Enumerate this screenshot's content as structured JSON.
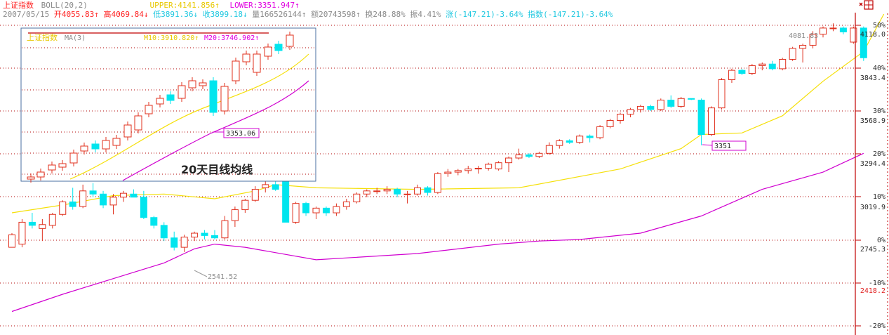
{
  "header": {
    "index_name": "上证指数",
    "indicator": "BOLL(20,2)",
    "upper": "UPPER:4141.856↑",
    "lower": "LOWER:3351.947↑",
    "date": "2007/05/15",
    "open": "开4055.83↑",
    "high": "高4069.84↓",
    "low": "低3891.36↓",
    "close": "收3899.18↓",
    "volume": "量166526144↑",
    "amount": "额20743598↑",
    "turnover": "换248.88%",
    "amplitude": "振4.41%",
    "change": "涨(-147.21)-3.64%",
    "index_change": "指数(-147.21)-3.64%"
  },
  "inset": {
    "title": "上证指数",
    "ma_label": "MA(3)",
    "m10": "M10:3910.820↑",
    "m20": "M20:3746.902↑",
    "low_label": "3353.06",
    "caption": "20天目线均线"
  },
  "annotations": {
    "main_low": "2541.52",
    "main_high": "4081.83",
    "mid_low": "3351"
  },
  "colors": {
    "up": "#e0301e",
    "down": "#00e5ee",
    "upper_band": "#f5e00a",
    "lower_band": "#d000d0",
    "grid": "#b00000",
    "axis": "#c00000",
    "header_red": "#ff2020",
    "header_yellow": "#e8c800",
    "header_cyan": "#20c8e0",
    "header_magenta": "#e000e0",
    "header_gray": "#8a8a8a"
  },
  "chart_data": {
    "type": "candlestick",
    "y_axis": {
      "price_labels": [
        "4118.0",
        "3843.4",
        "3568.9",
        "3294.4",
        "3019.9",
        "2745.3",
        "2418.2"
      ],
      "percent_labels": [
        "50%",
        "40%",
        "30%",
        "20%",
        "10%",
        "0%",
        "-10%",
        "-20%"
      ],
      "range": [
        2200,
        4300
      ]
    },
    "ohlc": [
      [
        2700,
        2790,
        2720,
        2780
      ],
      [
        2720,
        2880,
        2700,
        2860
      ],
      [
        2860,
        2920,
        2820,
        2840
      ],
      [
        2820,
        2880,
        2740,
        2845
      ],
      [
        2840,
        2920,
        2820,
        2910
      ],
      [
        2910,
        3000,
        2900,
        2990
      ],
      [
        2990,
        3080,
        2940,
        2960
      ],
      [
        2960,
        3100,
        2950,
        3060
      ],
      [
        3060,
        3110,
        3020,
        3040
      ],
      [
        3040,
        3060,
        2950,
        2970
      ],
      [
        2970,
        3040,
        2910,
        3020
      ],
      [
        3020,
        3060,
        2990,
        3045
      ],
      [
        3040,
        3070,
        3020,
        3020
      ],
      [
        3020,
        3060,
        2880,
        2890
      ],
      [
        2890,
        2900,
        2820,
        2840
      ],
      [
        2840,
        2860,
        2740,
        2760
      ],
      [
        2760,
        2800,
        2680,
        2700
      ],
      [
        2700,
        2780,
        2670,
        2765
      ],
      [
        2765,
        2800,
        2740,
        2790
      ],
      [
        2790,
        2810,
        2750,
        2775
      ],
      [
        2775,
        2810,
        2750,
        2760
      ],
      [
        2760,
        2900,
        2750,
        2870
      ],
      [
        2870,
        2960,
        2830,
        2940
      ],
      [
        2940,
        3010,
        2920,
        3000
      ],
      [
        3000,
        3090,
        2990,
        3070
      ],
      [
        3080,
        3120,
        3050,
        3100
      ],
      [
        3100,
        3130,
        3060,
        3070
      ],
      [
        3120,
        3130,
        2860,
        2860
      ],
      [
        2860,
        2990,
        2850,
        2980
      ],
      [
        2980,
        2990,
        2900,
        2920
      ],
      [
        2920,
        2960,
        2880,
        2950
      ],
      [
        2950,
        2960,
        2900,
        2920
      ],
      [
        2920,
        2980,
        2900,
        2960
      ],
      [
        2960,
        3010,
        2940,
        2990
      ],
      [
        2990,
        3050,
        2980,
        3040
      ],
      [
        3040,
        3070,
        3020,
        3060
      ],
      [
        3060,
        3080,
        3040,
        3060
      ],
      [
        3060,
        3090,
        3040,
        3070
      ],
      [
        3070,
        3080,
        3020,
        3040
      ],
      [
        3040,
        3060,
        2980,
        3040
      ],
      [
        3040,
        3100,
        3030,
        3080
      ],
      [
        3080,
        3090,
        3030,
        3050
      ],
      [
        3050,
        3180,
        3040,
        3170
      ],
      [
        3170,
        3200,
        3150,
        3180
      ],
      [
        3180,
        3200,
        3160,
        3190
      ],
      [
        3190,
        3220,
        3170,
        3200
      ],
      [
        3200,
        3220,
        3170,
        3205
      ],
      [
        3205,
        3240,
        3190,
        3230
      ],
      [
        3200,
        3250,
        3190,
        3240
      ],
      [
        3240,
        3280,
        3180,
        3270
      ],
      [
        3270,
        3330,
        3260,
        3290
      ],
      [
        3290,
        3300,
        3270,
        3280
      ],
      [
        3280,
        3310,
        3270,
        3300
      ],
      [
        3300,
        3370,
        3290,
        3350
      ],
      [
        3350,
        3390,
        3330,
        3380
      ],
      [
        3380,
        3390,
        3360,
        3370
      ],
      [
        3370,
        3420,
        3360,
        3410
      ],
      [
        3410,
        3420,
        3370,
        3400
      ],
      [
        3400,
        3480,
        3390,
        3470
      ],
      [
        3470,
        3520,
        3460,
        3510
      ],
      [
        3510,
        3560,
        3490,
        3550
      ],
      [
        3550,
        3590,
        3530,
        3580
      ],
      [
        3580,
        3610,
        3560,
        3600
      ],
      [
        3600,
        3610,
        3570,
        3580
      ],
      [
        3580,
        3650,
        3570,
        3640
      ],
      [
        3640,
        3670,
        3590,
        3600
      ],
      [
        3600,
        3660,
        3590,
        3650
      ],
      [
        3650,
        3650,
        3640,
        3645
      ],
      [
        3640,
        3650,
        3351,
        3420
      ],
      [
        3420,
        3600,
        3410,
        3590
      ],
      [
        3590,
        3780,
        3580,
        3770
      ],
      [
        3770,
        3840,
        3750,
        3830
      ],
      [
        3830,
        3840,
        3800,
        3810
      ],
      [
        3810,
        3870,
        3800,
        3860
      ],
      [
        3860,
        3880,
        3830,
        3870
      ],
      [
        3870,
        3890,
        3830,
        3840
      ],
      [
        3840,
        3910,
        3830,
        3900
      ],
      [
        3900,
        3980,
        3890,
        3970
      ],
      [
        3970,
        4000,
        3880,
        3990
      ],
      [
        3990,
        4080,
        3970,
        4060
      ],
      [
        4060,
        4110,
        4040,
        4100
      ],
      [
        4100,
        4130,
        4080,
        4100
      ],
      [
        4100,
        4110,
        4060,
        4075
      ],
      [
        4010,
        4110,
        4000,
        4100
      ],
      [
        4100,
        4110,
        3890,
        3910
      ]
    ],
    "upper_band": [
      [
        0,
        2920
      ],
      [
        5,
        2970
      ],
      [
        10,
        3030
      ],
      [
        15,
        3040
      ],
      [
        20,
        3010
      ],
      [
        24,
        3060
      ],
      [
        26,
        3100
      ],
      [
        30,
        3080
      ],
      [
        40,
        3070
      ],
      [
        50,
        3080
      ],
      [
        60,
        3200
      ],
      [
        66,
        3330
      ],
      [
        68,
        3420
      ],
      [
        72,
        3430
      ],
      [
        76,
        3540
      ],
      [
        80,
        3760
      ],
      [
        84,
        3950
      ],
      [
        86,
        4300
      ]
    ],
    "lower_band": [
      [
        0,
        2290
      ],
      [
        5,
        2400
      ],
      [
        10,
        2500
      ],
      [
        15,
        2600
      ],
      [
        18,
        2690
      ],
      [
        20,
        2720
      ],
      [
        23,
        2700
      ],
      [
        30,
        2620
      ],
      [
        40,
        2660
      ],
      [
        48,
        2720
      ],
      [
        52,
        2740
      ],
      [
        56,
        2750
      ],
      [
        62,
        2790
      ],
      [
        68,
        2900
      ],
      [
        74,
        3070
      ],
      [
        80,
        3180
      ],
      [
        84,
        3300
      ]
    ]
  }
}
